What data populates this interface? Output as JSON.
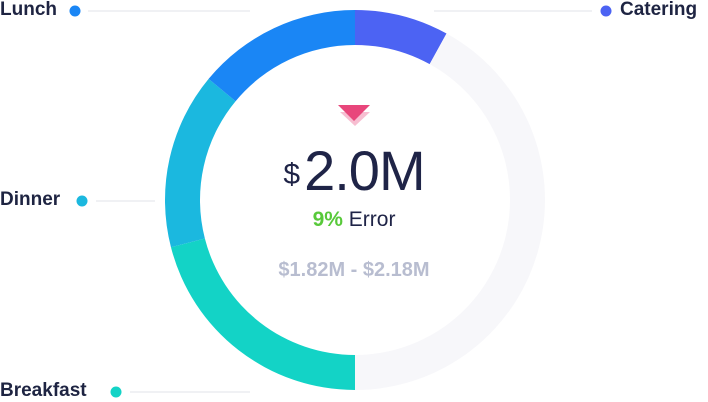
{
  "chart_data": {
    "type": "pie",
    "style": "donut",
    "slices": [
      {
        "label": "Catering",
        "value": 8,
        "color": "#4c63f3"
      },
      {
        "label": "Remaining",
        "value": 42,
        "color": "#f7f7fa"
      },
      {
        "label": "Breakfast",
        "value": 21,
        "color": "#13d3c6"
      },
      {
        "label": "Dinner",
        "value": 15,
        "color": "#1bb8df"
      },
      {
        "label": "Lunch",
        "value": 14,
        "color": "#1a86f5"
      }
    ],
    "legend": [
      {
        "label": "Lunch",
        "color": "#1a86f5",
        "position": "top-left"
      },
      {
        "label": "Catering",
        "color": "#4c63f3",
        "position": "top-right"
      },
      {
        "label": "Dinner",
        "color": "#1bb8df",
        "position": "middle-left"
      },
      {
        "label": "Breakfast",
        "color": "#13d3c6",
        "position": "bottom-left"
      }
    ]
  },
  "center": {
    "currency": "$",
    "amount": "2.0M",
    "error_pct": "9%",
    "error_label": "Error",
    "range": "$1.82M - $2.18M",
    "indicator_color": "#e8467b"
  }
}
